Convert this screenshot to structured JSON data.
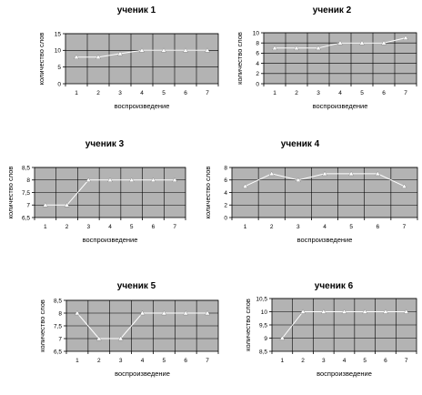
{
  "chart_data": [
    {
      "type": "line",
      "title": "ученик 1",
      "xlabel": "воспроизведение",
      "ylabel": "количество слов",
      "categories": [
        1,
        2,
        3,
        4,
        5,
        6,
        7
      ],
      "series": [
        {
          "values": [
            8,
            8,
            9,
            10,
            10,
            10,
            10
          ]
        }
      ],
      "ylim": [
        0,
        15
      ],
      "yticks": [
        "0",
        "5",
        "10",
        "15"
      ],
      "grid": true,
      "legend": "none"
    },
    {
      "type": "line",
      "title": "ученик 2",
      "xlabel": "воспроизведение",
      "ylabel": "количество слов",
      "categories": [
        1,
        2,
        3,
        4,
        5,
        6,
        7
      ],
      "series": [
        {
          "values": [
            7,
            7,
            7,
            8,
            8,
            8,
            9
          ]
        }
      ],
      "ylim": [
        0,
        10
      ],
      "yticks": [
        "0",
        "2",
        "4",
        "6",
        "8",
        "10"
      ],
      "grid": true,
      "legend": "none"
    },
    {
      "type": "line",
      "title": "ученик 3",
      "xlabel": "воспроизведение",
      "ylabel": "количество слов",
      "categories": [
        1,
        2,
        3,
        4,
        5,
        6,
        7
      ],
      "series": [
        {
          "values": [
            7,
            7,
            8,
            8,
            8,
            8,
            8
          ]
        }
      ],
      "ylim": [
        6.5,
        8.5
      ],
      "yticks": [
        "6,5",
        "7",
        "7,5",
        "8",
        "8,5"
      ],
      "grid": true,
      "legend": "none"
    },
    {
      "type": "line",
      "title": "ученик 4",
      "xlabel": "воспроизведение",
      "ylabel": "количество слов",
      "categories": [
        1,
        2,
        3,
        4,
        5,
        6,
        7
      ],
      "series": [
        {
          "values": [
            5,
            7,
            6,
            7,
            7,
            7,
            5
          ]
        }
      ],
      "ylim": [
        0,
        8
      ],
      "yticks": [
        "0",
        "2",
        "4",
        "6",
        "8"
      ],
      "grid": true,
      "legend": "none"
    },
    {
      "type": "line",
      "title": "ученик 5",
      "xlabel": "воспроизведение",
      "ylabel": "количество слов",
      "categories": [
        1,
        2,
        3,
        4,
        5,
        6,
        7
      ],
      "series": [
        {
          "values": [
            8,
            7,
            7,
            8,
            8,
            8,
            8
          ]
        }
      ],
      "ylim": [
        6.5,
        8.5
      ],
      "yticks": [
        "6,5",
        "7",
        "7,5",
        "8",
        "8,5"
      ],
      "grid": true,
      "legend": "none"
    },
    {
      "type": "line",
      "title": "ученик 6",
      "xlabel": "воспроизведение",
      "ylabel": "количество слов",
      "categories": [
        1,
        2,
        3,
        4,
        5,
        6,
        7
      ],
      "series": [
        {
          "values": [
            9,
            10,
            10,
            10,
            10,
            10,
            10
          ]
        }
      ],
      "ylim": [
        8.5,
        10.5
      ],
      "yticks": [
        "8,5",
        "9",
        "9,5",
        "10",
        "10,5"
      ],
      "grid": true,
      "legend": "none"
    }
  ]
}
